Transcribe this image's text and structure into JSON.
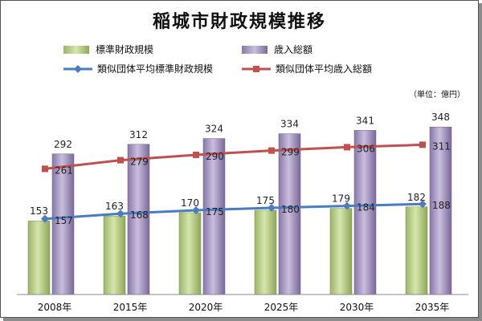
{
  "chart_data": {
    "type": "bar+line",
    "title": "稲城市財政規模推移",
    "unit_label": "（単位：億円）",
    "categories": [
      "2008年",
      "2015年",
      "2020年",
      "2025年",
      "2030年",
      "2035年"
    ],
    "series": [
      {
        "name": "標準財政規模",
        "kind": "bar",
        "color": "#b3c97e",
        "values": [
          153,
          163,
          170,
          175,
          179,
          182
        ]
      },
      {
        "name": "歳入総額",
        "kind": "bar",
        "color": "#9d8cb8",
        "values": [
          292,
          312,
          324,
          334,
          341,
          348
        ]
      },
      {
        "name": "類似団体平均標準財政規模",
        "kind": "line",
        "color": "#4a7dbf",
        "values": [
          157,
          168,
          175,
          180,
          184,
          188
        ]
      },
      {
        "name": "類似団体平均歳入総額",
        "kind": "line",
        "color": "#c0504d",
        "values": [
          261,
          279,
          290,
          299,
          306,
          311
        ]
      }
    ],
    "ylim": [
      0,
      400
    ],
    "grid": false,
    "legend_position": "top"
  }
}
